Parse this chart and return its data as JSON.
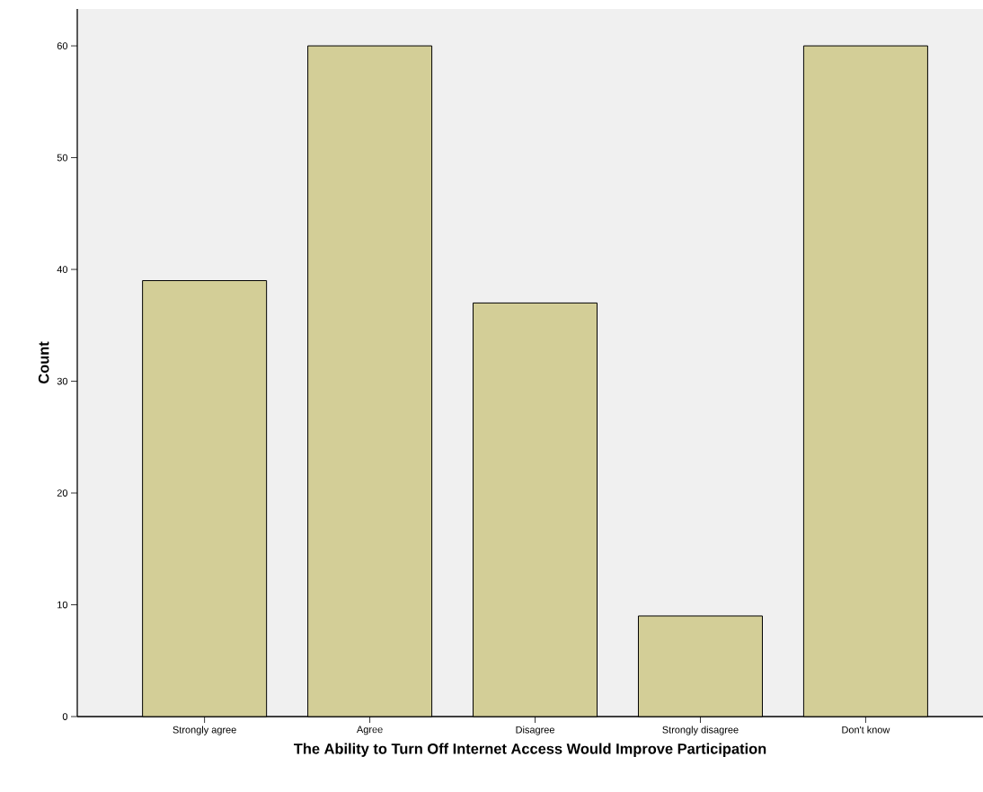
{
  "chart_data": {
    "type": "bar",
    "xlabel": "The Ability to Turn Off Internet Access Would Improve Participation",
    "ylabel": "Count",
    "categories": [
      "Strongly agree",
      "Agree",
      "Disagree",
      "Strongly disagree",
      "Don't know"
    ],
    "values": [
      39,
      60,
      37,
      9,
      60
    ],
    "color": "#d3ce97",
    "ylim": [
      0,
      63.3
    ],
    "yticks": [
      0,
      10,
      20,
      30,
      40,
      50,
      60
    ],
    "grid": false
  }
}
